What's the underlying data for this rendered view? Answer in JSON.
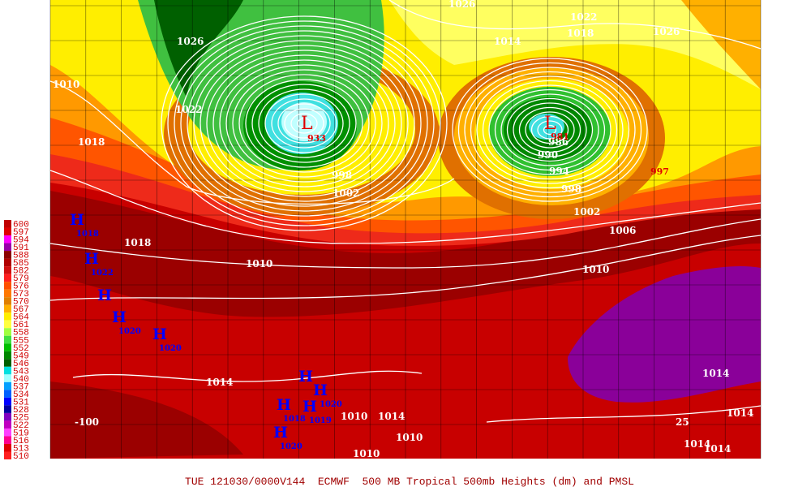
{
  "caption": "TUE 121030/0000V144  ECMWF  500 MB Tropical 500mb Heights (dm) and PMSL",
  "legend": [
    {
      "label": "600",
      "color": "#c00000"
    },
    {
      "label": "597",
      "color": "#e00000"
    },
    {
      "label": "594",
      "color": "#ff00ff"
    },
    {
      "label": "591",
      "color": "#9900aa"
    },
    {
      "label": "588",
      "color": "#8b0000"
    },
    {
      "label": "585",
      "color": "#b00000"
    },
    {
      "label": "582",
      "color": "#d01010"
    },
    {
      "label": "579",
      "color": "#ff2020"
    },
    {
      "label": "576",
      "color": "#ff5000"
    },
    {
      "label": "573",
      "color": "#ff7800"
    },
    {
      "label": "570",
      "color": "#e08000"
    },
    {
      "label": "567",
      "color": "#ffb000"
    },
    {
      "label": "564",
      "color": "#ffee00"
    },
    {
      "label": "561",
      "color": "#ffff40"
    },
    {
      "label": "558",
      "color": "#a0ff40"
    },
    {
      "label": "555",
      "color": "#40e040"
    },
    {
      "label": "552",
      "color": "#00c000"
    },
    {
      "label": "549",
      "color": "#008800"
    },
    {
      "label": "546",
      "color": "#006000"
    },
    {
      "label": "543",
      "color": "#00e0e0"
    },
    {
      "label": "540",
      "color": "#a0ffff"
    },
    {
      "label": "537",
      "color": "#00a0ff"
    },
    {
      "label": "534",
      "color": "#0060ff"
    },
    {
      "label": "531",
      "color": "#0000ff"
    },
    {
      "label": "528",
      "color": "#0000a0"
    },
    {
      "label": "525",
      "color": "#8000c0"
    },
    {
      "label": "522",
      "color": "#c000c0"
    },
    {
      "label": "519",
      "color": "#ff40ff"
    },
    {
      "label": "516",
      "color": "#ff0090"
    },
    {
      "label": "513",
      "color": "#e00000"
    },
    {
      "label": "510",
      "color": "#ff2020"
    }
  ],
  "lows": [
    {
      "label": "L",
      "value": "933"
    },
    {
      "label": "L",
      "value": "981"
    }
  ],
  "highs": [
    {
      "label": "H",
      "value": "1018"
    },
    {
      "label": "H",
      "value": "1022"
    },
    {
      "label": "H",
      "value": ""
    },
    {
      "label": "H",
      "value": "1020"
    },
    {
      "label": "H",
      "value": "1020"
    },
    {
      "label": "H",
      "value": ""
    },
    {
      "label": "H",
      "value": "1020"
    },
    {
      "label": "H",
      "value": "1018"
    },
    {
      "label": "H",
      "value": "1019"
    },
    {
      "label": "H",
      "value": "1020"
    }
  ],
  "isobar_labels": [
    "1026",
    "1026",
    "1022",
    "1018",
    "1026",
    "1014",
    "1010",
    "1022",
    "1018",
    "998",
    "1002",
    "998",
    "1002",
    "1006",
    "1010",
    "1018",
    "1010",
    "994",
    "990",
    "986",
    "1014",
    "1014",
    "1014",
    "1014",
    "1014",
    "1010",
    "1010",
    "1014",
    "1010",
    "-100",
    "25"
  ],
  "red_labels": [
    "997"
  ]
}
